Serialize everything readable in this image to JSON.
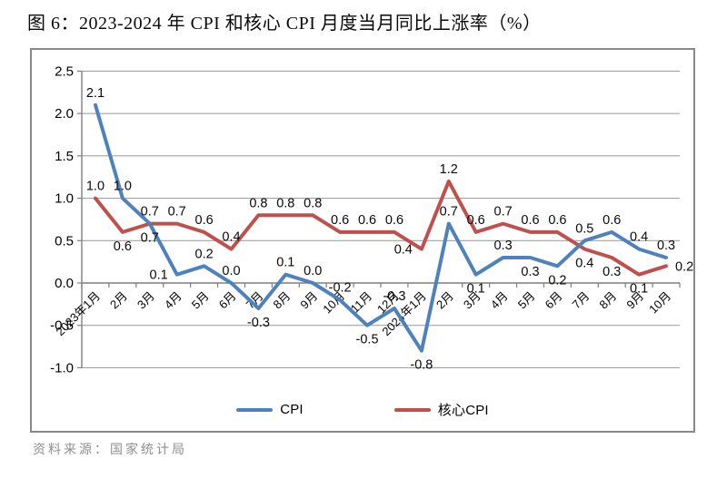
{
  "page": {
    "title": "图 6：2023-2024 年 CPI 和核心 CPI 月度当月同比上涨率（%）",
    "source": "资料来源：国家统计局"
  },
  "chart_data": {
    "type": "line",
    "title": "图 6：2023-2024 年 CPI 和核心 CPI 月度当月同比上涨率（%）",
    "categories": [
      "2023年1月",
      "2月",
      "3月",
      "4月",
      "5月",
      "6月",
      "7月",
      "8月",
      "9月",
      "10月",
      "11月",
      "12月",
      "2024年1月",
      "2月",
      "3月",
      "4月",
      "5月",
      "6月",
      "7月",
      "8月",
      "9月",
      "10月"
    ],
    "series": [
      {
        "name": "CPI",
        "color": "#4F81BD",
        "values": [
          2.1,
          1.0,
          0.7,
          0.1,
          0.2,
          0.0,
          -0.3,
          0.1,
          0.0,
          -0.2,
          -0.5,
          -0.3,
          -0.8,
          0.7,
          0.1,
          0.3,
          0.3,
          0.2,
          0.5,
          0.6,
          0.4,
          0.3
        ]
      },
      {
        "name": "核心CPI",
        "color": "#C0504D",
        "values": [
          1.0,
          0.6,
          0.7,
          0.7,
          0.6,
          0.4,
          0.8,
          0.8,
          0.8,
          0.6,
          0.6,
          0.6,
          0.4,
          1.2,
          0.6,
          0.7,
          0.6,
          0.6,
          0.4,
          0.3,
          0.1,
          0.2
        ]
      }
    ],
    "ylim": [
      -1.0,
      2.5
    ],
    "ytick_step": 0.5,
    "ytick_labels": [
      "2.5",
      "2.0",
      "1.5",
      "1.0",
      "0.5",
      "0.0",
      "-0.5",
      "-1.0"
    ],
    "grid": true,
    "data_labels": true,
    "legend_position": "bottom",
    "label_positions": [
      [
        "a",
        "a",
        "b",
        "l",
        "a",
        "a",
        "b",
        "a",
        "a",
        "a",
        "b",
        "a",
        "b",
        "a",
        "b",
        "a",
        "b",
        "b",
        "a",
        "a",
        "a",
        "a"
      ],
      [
        "a",
        "b",
        "a",
        "a",
        "a",
        "a",
        "a",
        "a",
        "a",
        "a",
        "a",
        "a",
        "l",
        "a",
        "a",
        "a",
        "a",
        "a",
        "b",
        "b",
        "b",
        "r"
      ]
    ],
    "axis_color": "#7f7f7f",
    "grid_color": "#a3a3a3"
  }
}
